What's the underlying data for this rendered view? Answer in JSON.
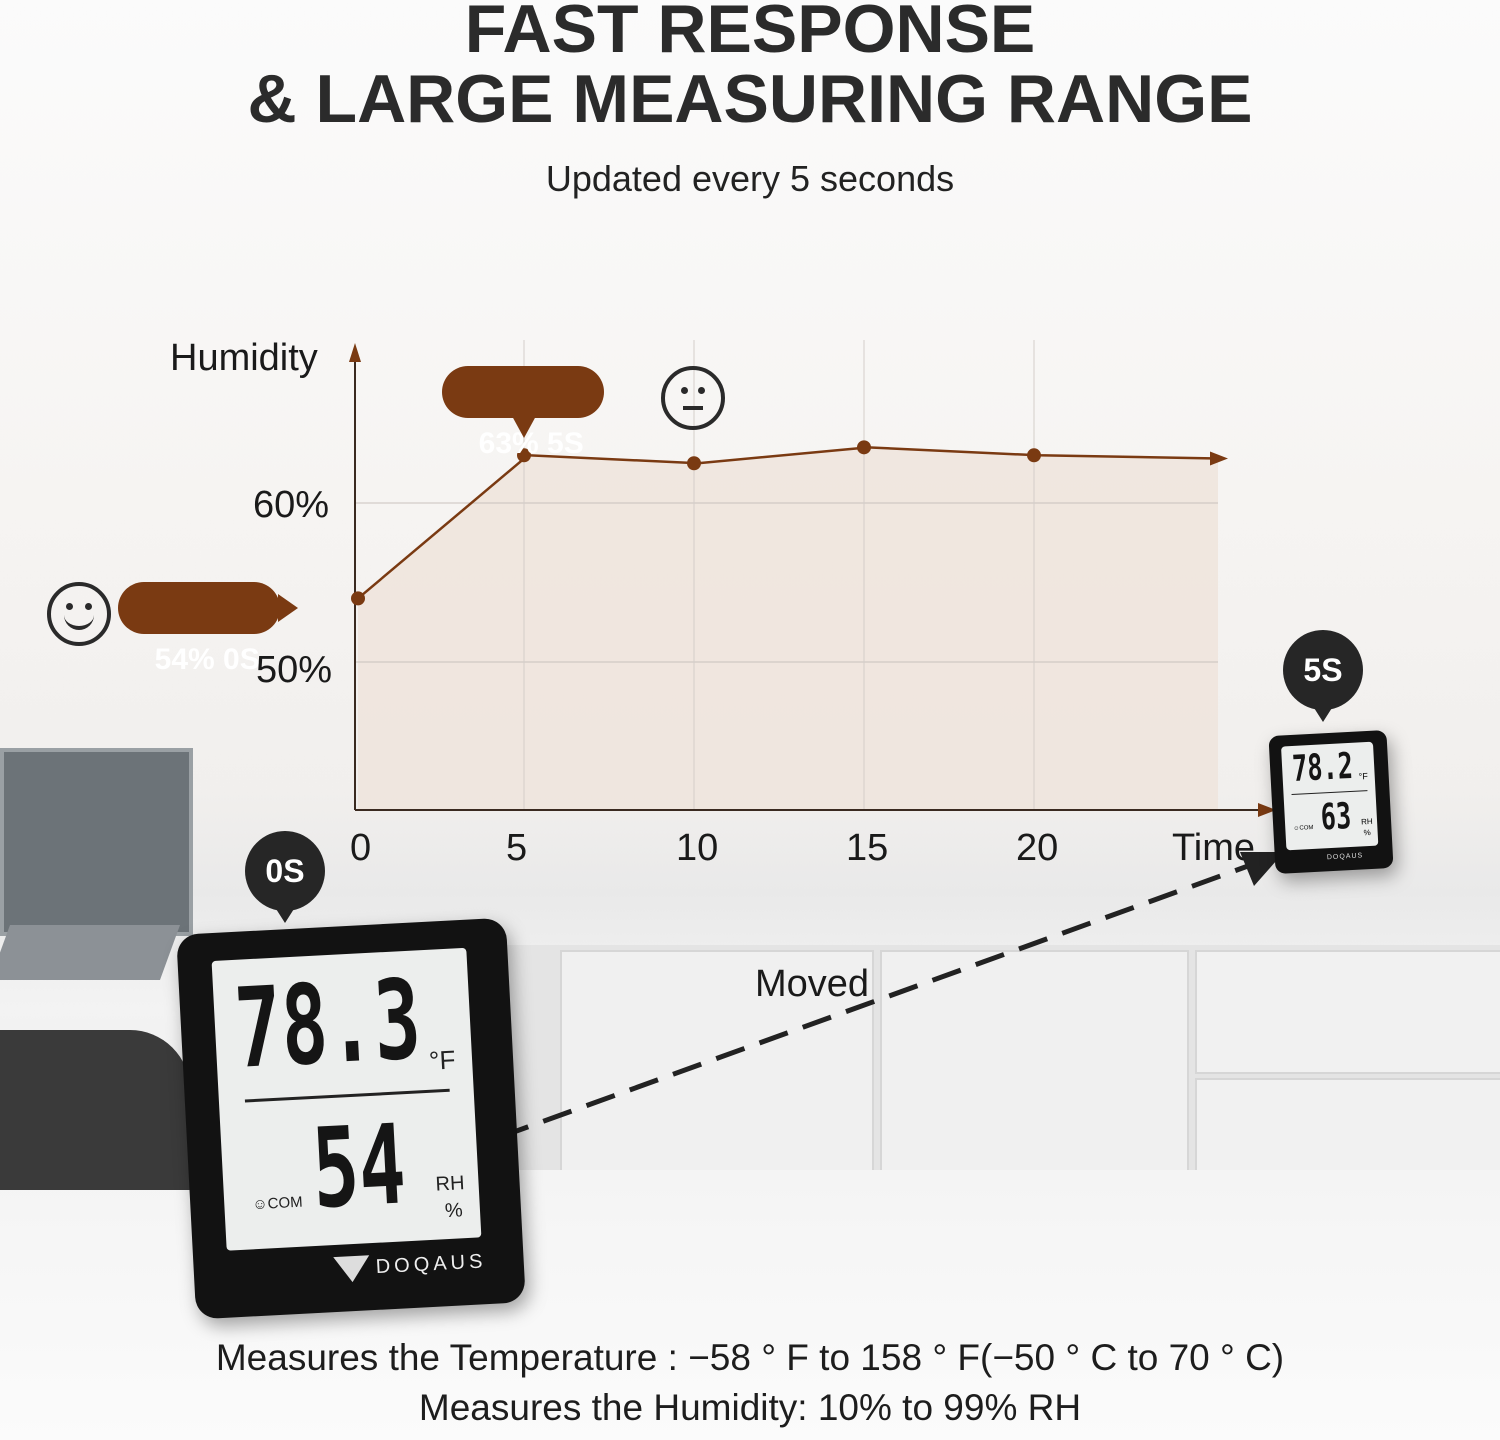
{
  "header": {
    "title_line1": "FAST RESPONSE",
    "title_line2": "& LARGE MEASURING RANGE",
    "subtitle": "Updated every 5 seconds"
  },
  "chart_data": {
    "type": "area",
    "title": "",
    "ylabel": "Humidity",
    "xlabel": "Time",
    "x": [
      0,
      5,
      10,
      15,
      20
    ],
    "series": [
      {
        "values": [
          54,
          63,
          62.5,
          63.5,
          63
        ]
      }
    ],
    "xticks": [
      "0",
      "5",
      "10",
      "15",
      "20"
    ],
    "yticks": [
      "50%",
      "60%"
    ],
    "ylim": [
      45,
      70
    ],
    "xlim": [
      0,
      25
    ],
    "grid": true,
    "line_color": "#7a3a12",
    "fill_color": "#efe4dc",
    "annotations": [
      {
        "text": "54% 0S",
        "at_x": 0
      },
      {
        "text": "63% 5S",
        "at_x": 5
      }
    ]
  },
  "faces": {
    "happy": "smiley-face-icon",
    "neutral": "neutral-face-icon"
  },
  "markers": {
    "start": "0S",
    "end": "5S",
    "moved": "Moved"
  },
  "device_large": {
    "temperature": "78.3",
    "temp_unit": "°F",
    "humidity": "54",
    "humidity_unit_1": "RH",
    "humidity_unit_2": "%",
    "comfort": "☺COM",
    "brand": "DOQAUS"
  },
  "device_small": {
    "temperature": "78.2",
    "temp_unit": "°F",
    "humidity": "63",
    "humidity_unit_1": "RH",
    "humidity_unit_2": "%",
    "comfort": "☺COM",
    "brand": "DOQAUS"
  },
  "footer": {
    "line1": "Measures the Temperature : −58 °  F to 158 °  F(−50 °  C to 70 °  C)",
    "line2": "Measures the Humidity: 10% to 99% RH"
  },
  "colors": {
    "accent": "#7a3a12",
    "pin": "#262626"
  }
}
